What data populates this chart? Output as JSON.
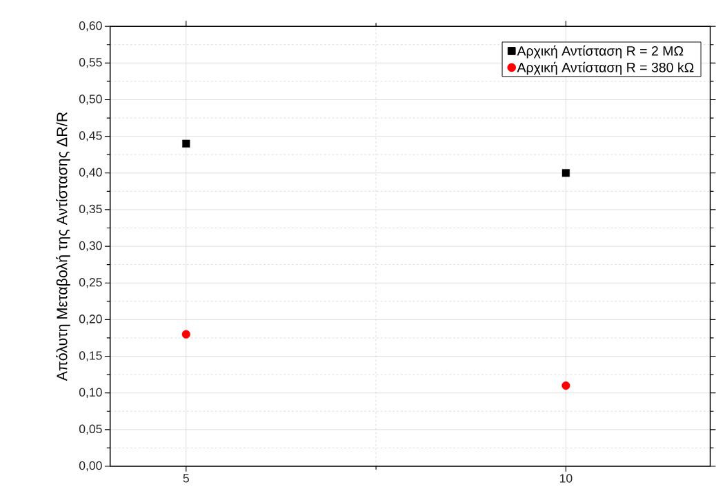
{
  "chart_data": {
    "type": "scatter",
    "ylabel": "Απόλυτη Μεταβολή της Αντίστασης ΔR/R",
    "x": [
      5,
      10
    ],
    "series": [
      {
        "name": "Αρχική Αντίσταση R = 2 MΩ",
        "color": "#000000",
        "marker": "square",
        "values": [
          0.44,
          0.4
        ]
      },
      {
        "name": "Αρχική Αντίσταση R = 380 kΩ",
        "color": "#ff0000",
        "marker": "circle",
        "values": [
          0.18,
          0.11
        ]
      }
    ],
    "xlim": [
      4,
      11.9
    ],
    "ylim": [
      0,
      0.6
    ],
    "xticks": [
      5,
      {
        "value": 7.5,
        "label": null
      },
      10
    ],
    "yticks": [
      {
        "value": 0,
        "label": "0,00"
      },
      {
        "value": 0.05,
        "label": "0,05"
      },
      {
        "value": 0.1,
        "label": "0,10"
      },
      {
        "value": 0.15,
        "label": "0,15"
      },
      {
        "value": 0.2,
        "label": "0,20"
      },
      {
        "value": 0.25,
        "label": "0,25"
      },
      {
        "value": 0.3,
        "label": "0,30"
      },
      {
        "value": 0.35,
        "label": "0,35"
      },
      {
        "value": 0.4,
        "label": "0,40"
      },
      {
        "value": 0.45,
        "label": "0,45"
      },
      {
        "value": 0.5,
        "label": "0,50"
      },
      {
        "value": 0.55,
        "label": "0,55"
      },
      {
        "value": 0.6,
        "label": "0,60"
      }
    ],
    "grid": true,
    "legend": "top right"
  }
}
